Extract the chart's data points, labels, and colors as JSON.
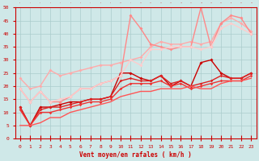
{
  "xlabel": "Vent moyen/en rafales ( km/h )",
  "bg_color": "#cfe8e8",
  "grid_color": "#aacccc",
  "xlim": [
    -0.5,
    23.5
  ],
  "ylim": [
    0,
    50
  ],
  "yticks": [
    0,
    5,
    10,
    15,
    20,
    25,
    30,
    35,
    40,
    45,
    50
  ],
  "xticks": [
    0,
    1,
    2,
    3,
    4,
    5,
    6,
    7,
    8,
    9,
    10,
    11,
    12,
    13,
    14,
    15,
    16,
    17,
    18,
    19,
    20,
    21,
    22,
    23
  ],
  "lines": [
    {
      "x": [
        0,
        1,
        2,
        3,
        4,
        5,
        6,
        7,
        8,
        9,
        10,
        11,
        12,
        13,
        14,
        15,
        16,
        17,
        18,
        19,
        20,
        21,
        22,
        23
      ],
      "y": [
        12,
        5,
        12,
        12,
        13,
        14,
        14,
        15,
        15,
        16,
        25,
        25,
        23,
        22,
        24,
        20,
        22,
        20,
        29,
        30,
        25,
        23,
        23,
        25
      ],
      "color": "#cc0000",
      "lw": 1.0,
      "marker": "D",
      "ms": 2.0
    },
    {
      "x": [
        0,
        1,
        2,
        3,
        4,
        5,
        6,
        7,
        8,
        9,
        10,
        11,
        12,
        13,
        14,
        15,
        16,
        17,
        18,
        19,
        20,
        21,
        22,
        23
      ],
      "y": [
        12,
        5,
        11,
        12,
        12,
        13,
        14,
        15,
        15,
        16,
        22,
        23,
        22,
        22,
        24,
        21,
        22,
        20,
        21,
        22,
        24,
        23,
        23,
        25
      ],
      "color": "#dd2222",
      "lw": 1.0,
      "marker": "D",
      "ms": 1.8
    },
    {
      "x": [
        0,
        1,
        2,
        3,
        4,
        5,
        6,
        7,
        8,
        9,
        10,
        11,
        12,
        13,
        14,
        15,
        16,
        17,
        18,
        19,
        20,
        21,
        22,
        23
      ],
      "y": [
        11,
        5,
        10,
        10,
        11,
        12,
        13,
        14,
        14,
        15,
        19,
        21,
        21,
        21,
        22,
        20,
        21,
        19,
        20,
        21,
        22,
        22,
        22,
        24
      ],
      "color": "#ee3333",
      "lw": 1.0,
      "marker": "D",
      "ms": 1.8
    },
    {
      "x": [
        0,
        1,
        2,
        3,
        4,
        5,
        6,
        7,
        8,
        9,
        10,
        11,
        12,
        13,
        14,
        15,
        16,
        17,
        18,
        19,
        20,
        21,
        22,
        23
      ],
      "y": [
        5,
        5,
        6,
        8,
        8,
        10,
        11,
        12,
        13,
        14,
        16,
        17,
        18,
        18,
        19,
        19,
        19,
        20,
        19,
        19,
        21,
        22,
        22,
        23
      ],
      "color": "#ff5555",
      "lw": 1.0,
      "marker": null,
      "ms": 0
    },
    {
      "x": [
        0,
        1,
        2,
        3,
        4,
        5,
        6,
        7,
        8,
        9,
        10,
        11,
        12,
        13,
        14,
        15,
        16,
        17,
        18,
        19,
        20,
        21,
        22,
        23
      ],
      "y": [
        23,
        19,
        20,
        26,
        24,
        25,
        26,
        27,
        28,
        28,
        29,
        30,
        31,
        35,
        37,
        36,
        36,
        37,
        36,
        37,
        44,
        46,
        44,
        41
      ],
      "color": "#ffaaaa",
      "lw": 1.0,
      "marker": "D",
      "ms": 2.0
    },
    {
      "x": [
        0,
        1,
        2,
        3,
        4,
        5,
        6,
        7,
        8,
        9,
        10,
        11,
        12,
        13,
        14,
        15,
        16,
        17,
        18,
        19,
        20,
        21,
        22,
        23
      ],
      "y": [
        19,
        14,
        18,
        14,
        14,
        16,
        19,
        19,
        21,
        22,
        24,
        47,
        42,
        36,
        35,
        34,
        35,
        35,
        50,
        35,
        44,
        47,
        46,
        40
      ],
      "color": "#ff8888",
      "lw": 1.0,
      "marker": "D",
      "ms": 2.0
    },
    {
      "x": [
        0,
        1,
        2,
        3,
        4,
        5,
        6,
        7,
        8,
        9,
        10,
        11,
        12,
        13,
        14,
        15,
        16,
        17,
        18,
        19,
        20,
        21,
        22,
        23
      ],
      "y": [
        19,
        14,
        18,
        14,
        15,
        16,
        19,
        19,
        21,
        22,
        24,
        30,
        28,
        34,
        34,
        35,
        35,
        35,
        34,
        35,
        42,
        44,
        42,
        40
      ],
      "color": "#ffcccc",
      "lw": 1.0,
      "marker": "D",
      "ms": 2.0
    }
  ]
}
